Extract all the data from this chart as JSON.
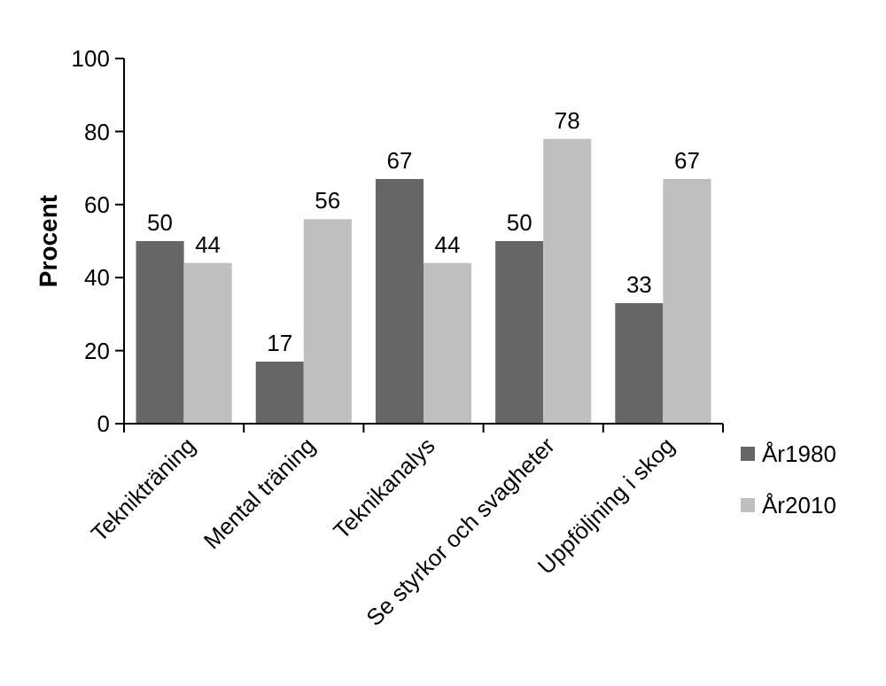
{
  "chart_data": {
    "type": "bar",
    "ylabel": "Procent",
    "categories": [
      "Teknikträning",
      "Mental träning",
      "Teknikanalys",
      "Se styrkor och svagheter",
      "Uppföljning i skog"
    ],
    "series": [
      {
        "name": "År1980",
        "color": "#666666",
        "values": [
          50,
          17,
          67,
          50,
          33
        ]
      },
      {
        "name": "År2010",
        "color": "#bfbfbf",
        "values": [
          44,
          56,
          44,
          78,
          67
        ]
      }
    ],
    "ylim": [
      0,
      100
    ],
    "yticks": [
      0,
      20,
      40,
      60,
      80,
      100
    ],
    "grid": false,
    "legend": "right",
    "data_labels": true
  }
}
